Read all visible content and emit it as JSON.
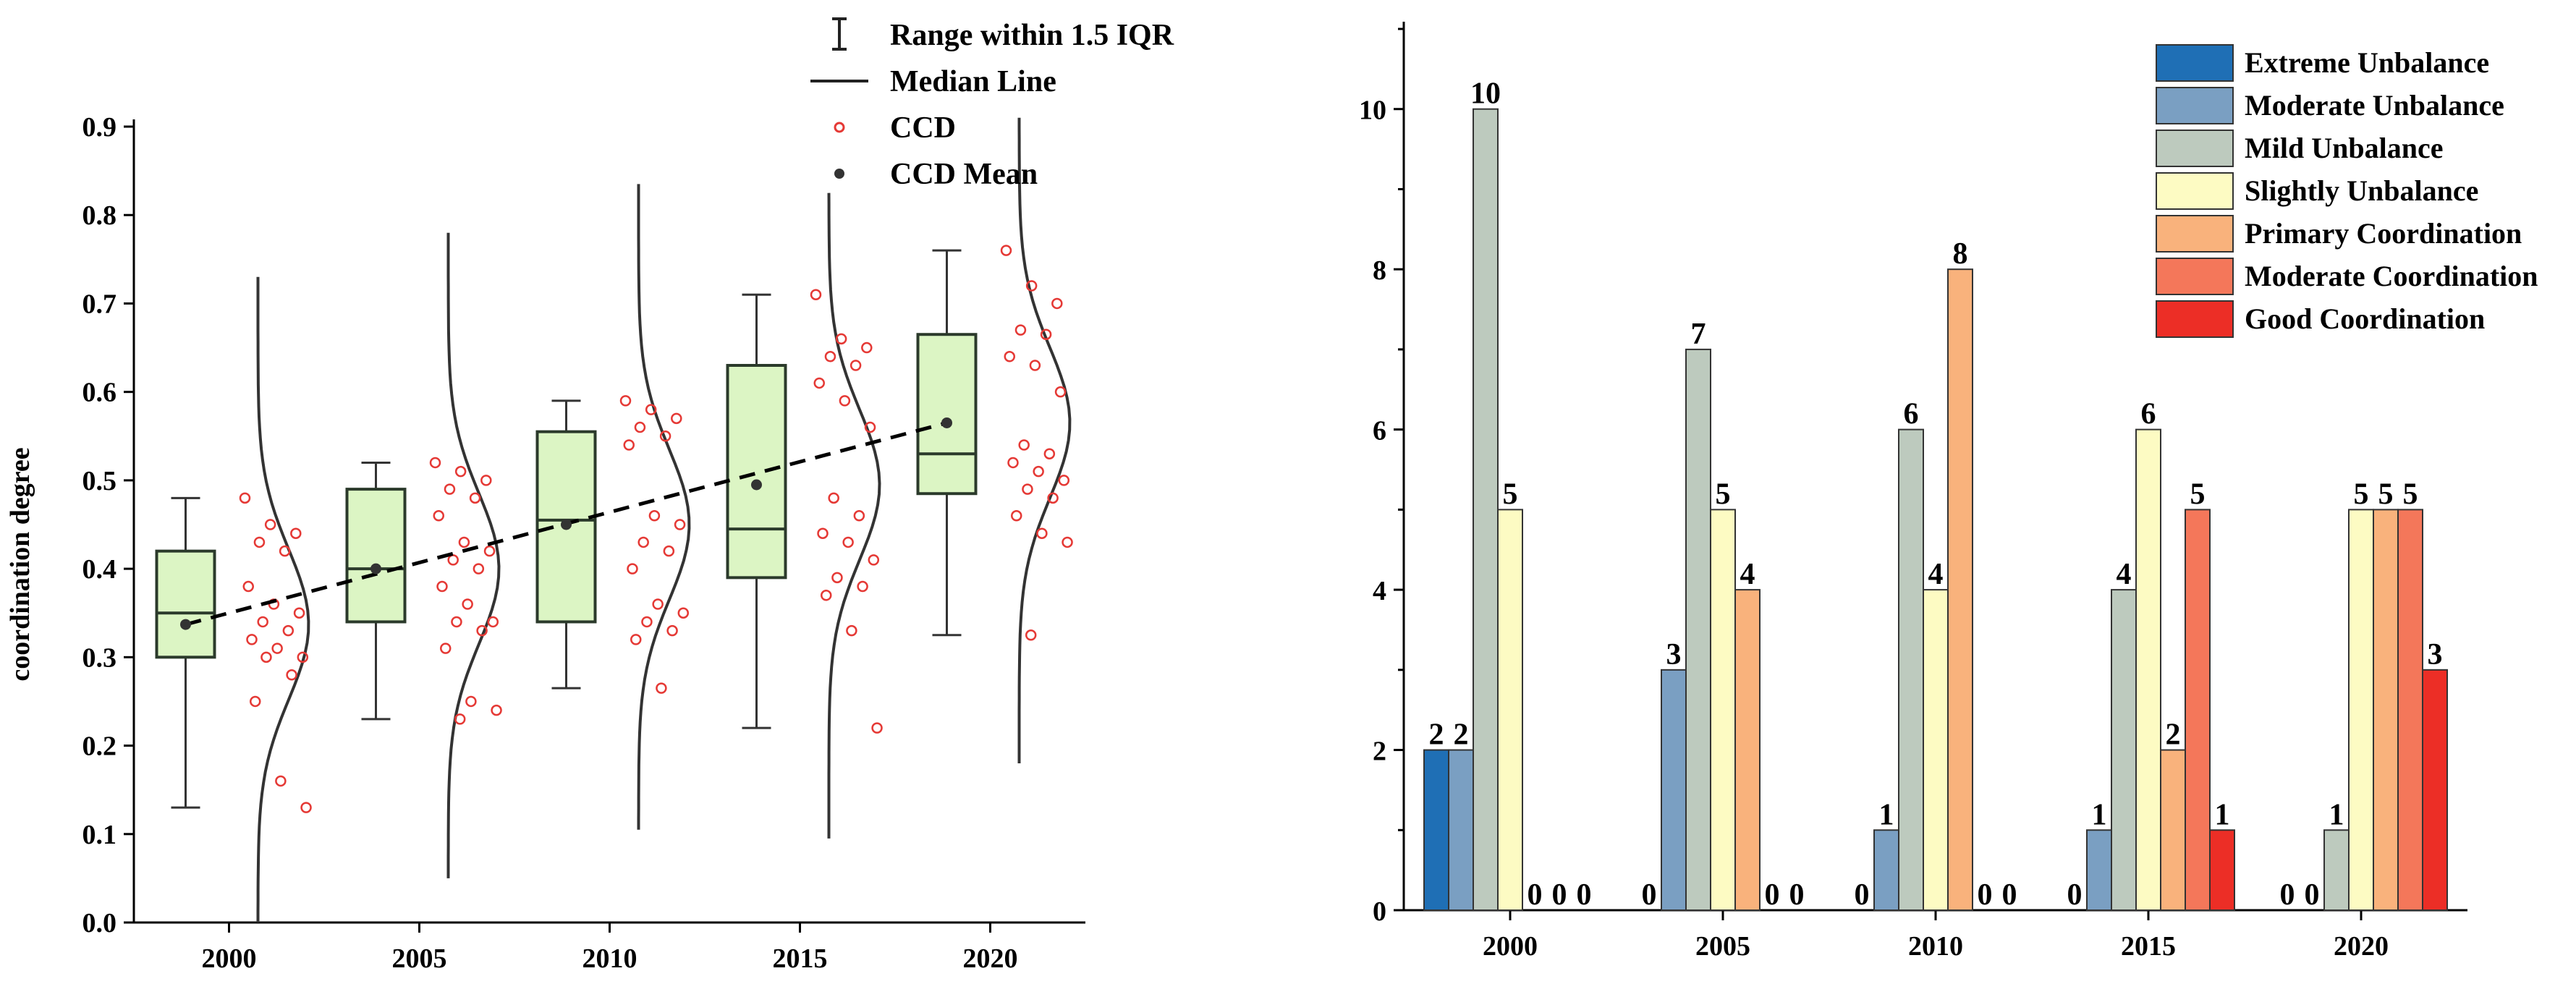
{
  "chart_data": [
    {
      "type": "box",
      "title": "",
      "xlabel": "",
      "ylabel": "coordination degree",
      "ylim": [
        0.0,
        0.9
      ],
      "yticks": [
        "0.0",
        "0.1",
        "0.2",
        "0.3",
        "0.4",
        "0.5",
        "0.6",
        "0.7",
        "0.8",
        "0.9"
      ],
      "categories": [
        "2000",
        "2005",
        "2010",
        "2015",
        "2020"
      ],
      "legend": {
        "range": "Range within 1.5 IQR",
        "median": "Median Line",
        "ccd": "CCD",
        "mean": "CCD Mean"
      },
      "colors": {
        "box_fill": "#dcf5c4",
        "box_stroke": "#2b3a2b",
        "points": "#e53935",
        "mean": "#333333"
      },
      "boxes": [
        {
          "year": "2000",
          "min": 0.13,
          "q1": 0.3,
          "median": 0.35,
          "q3": 0.42,
          "max": 0.48,
          "mean": 0.337,
          "points": [
            0.48,
            0.45,
            0.44,
            0.43,
            0.42,
            0.38,
            0.36,
            0.35,
            0.34,
            0.33,
            0.32,
            0.31,
            0.3,
            0.3,
            0.28,
            0.25,
            0.16,
            0.13
          ]
        },
        {
          "year": "2005",
          "min": 0.23,
          "q1": 0.34,
          "median": 0.4,
          "q3": 0.49,
          "max": 0.52,
          "mean": 0.4,
          "points": [
            0.52,
            0.51,
            0.5,
            0.49,
            0.48,
            0.46,
            0.43,
            0.42,
            0.41,
            0.4,
            0.38,
            0.36,
            0.34,
            0.34,
            0.33,
            0.31,
            0.25,
            0.24,
            0.23
          ]
        },
        {
          "year": "2010",
          "min": 0.265,
          "q1": 0.34,
          "median": 0.455,
          "q3": 0.555,
          "max": 0.59,
          "mean": 0.45,
          "points": [
            0.59,
            0.58,
            0.57,
            0.56,
            0.55,
            0.54,
            0.46,
            0.45,
            0.43,
            0.42,
            0.4,
            0.36,
            0.35,
            0.34,
            0.33,
            0.32,
            0.265
          ]
        },
        {
          "year": "2015",
          "min": 0.22,
          "q1": 0.39,
          "median": 0.445,
          "q3": 0.63,
          "max": 0.71,
          "mean": 0.495,
          "points": [
            0.71,
            0.66,
            0.65,
            0.64,
            0.63,
            0.61,
            0.59,
            0.56,
            0.48,
            0.46,
            0.44,
            0.43,
            0.41,
            0.39,
            0.38,
            0.37,
            0.33,
            0.22
          ]
        },
        {
          "year": "2020",
          "min": 0.325,
          "q1": 0.485,
          "median": 0.53,
          "q3": 0.665,
          "max": 0.76,
          "mean": 0.565,
          "points": [
            0.76,
            0.72,
            0.7,
            0.67,
            0.665,
            0.64,
            0.63,
            0.6,
            0.54,
            0.53,
            0.52,
            0.51,
            0.5,
            0.49,
            0.48,
            0.46,
            0.44,
            0.43,
            0.325
          ]
        }
      ],
      "trend_line": "dashed linear trend through CCD means"
    },
    {
      "type": "bar",
      "title": "",
      "xlabel": "",
      "ylabel": "",
      "ylim": [
        0,
        11
      ],
      "yticks": [
        "0",
        "2",
        "4",
        "6",
        "8",
        "10"
      ],
      "categories": [
        "2000",
        "2005",
        "2010",
        "2015",
        "2020"
      ],
      "series": [
        {
          "name": "Extreme Unbalance",
          "color": "#1f6fb5",
          "values": [
            2,
            0,
            0,
            0,
            0
          ]
        },
        {
          "name": "Moderate Unbalance",
          "color": "#7a9fc2",
          "values": [
            2,
            3,
            1,
            1,
            0
          ]
        },
        {
          "name": "Mild Unbalance",
          "color": "#bdcabe",
          "values": [
            10,
            7,
            6,
            4,
            1
          ]
        },
        {
          "name": "Slightly Unbalance",
          "color": "#fdfbc3",
          "values": [
            5,
            5,
            4,
            6,
            5
          ]
        },
        {
          "name": "Primary Coordination",
          "color": "#f9b27c",
          "values": [
            0,
            4,
            8,
            2,
            5
          ]
        },
        {
          "name": "Moderate Coordination",
          "color": "#f4775a",
          "values": [
            0,
            0,
            0,
            5,
            5
          ]
        },
        {
          "name": "Good Coordination",
          "color": "#ec2e26",
          "values": [
            0,
            0,
            0,
            1,
            3
          ]
        }
      ],
      "data_labels_2000": [
        "2",
        "2",
        "10",
        "5",
        "0",
        "0",
        "0"
      ],
      "data_labels_2005": [
        "0",
        "3",
        "7",
        "5",
        "4",
        "0",
        "0"
      ],
      "data_labels_2010": [
        "0",
        "1",
        "6",
        "4",
        "8",
        "0",
        "0"
      ],
      "data_labels_2015": [
        "0",
        "1",
        "4",
        "6",
        "2",
        "5",
        "1"
      ],
      "data_labels_2020": [
        "0",
        "0",
        "1",
        "5",
        "5",
        "5",
        "3"
      ],
      "legend_position": "top-right"
    }
  ]
}
